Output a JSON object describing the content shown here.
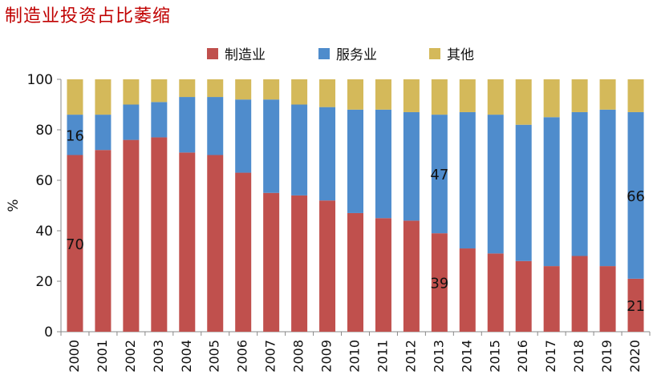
{
  "title": "制造业投资占比萎缩",
  "chart_data": {
    "type": "bar",
    "stacked": true,
    "ylabel": "%",
    "xlabel": "",
    "ylim": [
      0,
      100
    ],
    "yticks": [
      0,
      20,
      40,
      60,
      80,
      100
    ],
    "legend_position": "top",
    "categories": [
      "2000",
      "2001",
      "2002",
      "2003",
      "2004",
      "2005",
      "2006",
      "2007",
      "2008",
      "2009",
      "2010",
      "2011",
      "2012",
      "2013",
      "2014",
      "2015",
      "2016",
      "2017",
      "2018",
      "2019",
      "2020"
    ],
    "series": [
      {
        "name": "制造业",
        "color": "#c0504d",
        "values": [
          70,
          72,
          76,
          77,
          71,
          70,
          63,
          55,
          54,
          52,
          47,
          45,
          44,
          39,
          33,
          31,
          28,
          26,
          30,
          26,
          21
        ]
      },
      {
        "name": "服务业",
        "color": "#4f8ccc",
        "values": [
          16,
          14,
          14,
          14,
          22,
          23,
          29,
          37,
          36,
          37,
          41,
          43,
          43,
          47,
          54,
          55,
          54,
          59,
          57,
          62,
          66
        ]
      },
      {
        "name": "其他",
        "color": "#d4b95a",
        "values": [
          14,
          14,
          10,
          9,
          7,
          7,
          8,
          8,
          10,
          11,
          12,
          12,
          13,
          14,
          13,
          14,
          18,
          15,
          13,
          12,
          13
        ]
      }
    ],
    "annotations": [
      {
        "category": "2000",
        "series": "制造业",
        "text": "70"
      },
      {
        "category": "2000",
        "series": "服务业",
        "text": "16"
      },
      {
        "category": "2013",
        "series": "制造业",
        "text": "39"
      },
      {
        "category": "2013",
        "series": "服务业",
        "text": "47"
      },
      {
        "category": "2020",
        "series": "制造业",
        "text": "21"
      },
      {
        "category": "2020",
        "series": "服务业",
        "text": "66"
      }
    ]
  }
}
